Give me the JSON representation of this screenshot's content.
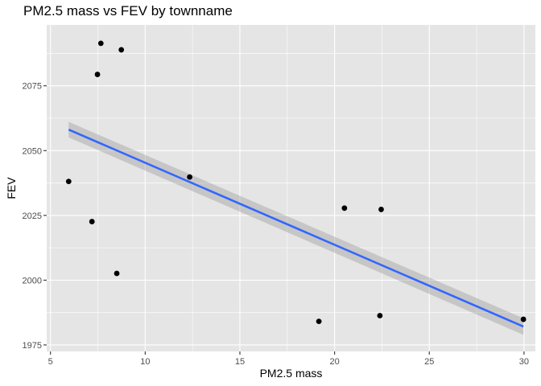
{
  "chart_data": {
    "type": "scatter",
    "title": "PM2.5 mass vs FEV by townname",
    "xlabel": "PM2.5 mass",
    "ylabel": "FEV",
    "xlim": [
      4.8,
      30.6
    ],
    "ylim": [
      1972.5,
      2098.5
    ],
    "xticks": [
      5,
      10,
      15,
      20,
      25,
      30
    ],
    "yticks": [
      1975,
      2000,
      2025,
      2050,
      2075
    ],
    "grid": true,
    "background": "#e5e5e5",
    "grid_color": "#ffffff",
    "point_color": "#000000",
    "points": [
      {
        "x": 5.96,
        "y": 2038.1
      },
      {
        "x": 7.19,
        "y": 2022.6
      },
      {
        "x": 7.48,
        "y": 2079.4
      },
      {
        "x": 7.66,
        "y": 2091.4
      },
      {
        "x": 8.5,
        "y": 2002.6
      },
      {
        "x": 8.74,
        "y": 2088.9
      },
      {
        "x": 12.35,
        "y": 2039.8
      },
      {
        "x": 19.17,
        "y": 1984.1
      },
      {
        "x": 20.52,
        "y": 2027.8
      },
      {
        "x": 22.39,
        "y": 1986.3
      },
      {
        "x": 22.46,
        "y": 2027.3
      },
      {
        "x": 29.97,
        "y": 1984.9
      }
    ],
    "trend": {
      "method": "linear",
      "color": "#3366ff",
      "band_color": "#999999",
      "x": [
        5.96,
        29.97
      ],
      "y": [
        2058.1,
        1982.1
      ],
      "band_halfwidth": [
        3.0,
        3.2
      ]
    }
  }
}
